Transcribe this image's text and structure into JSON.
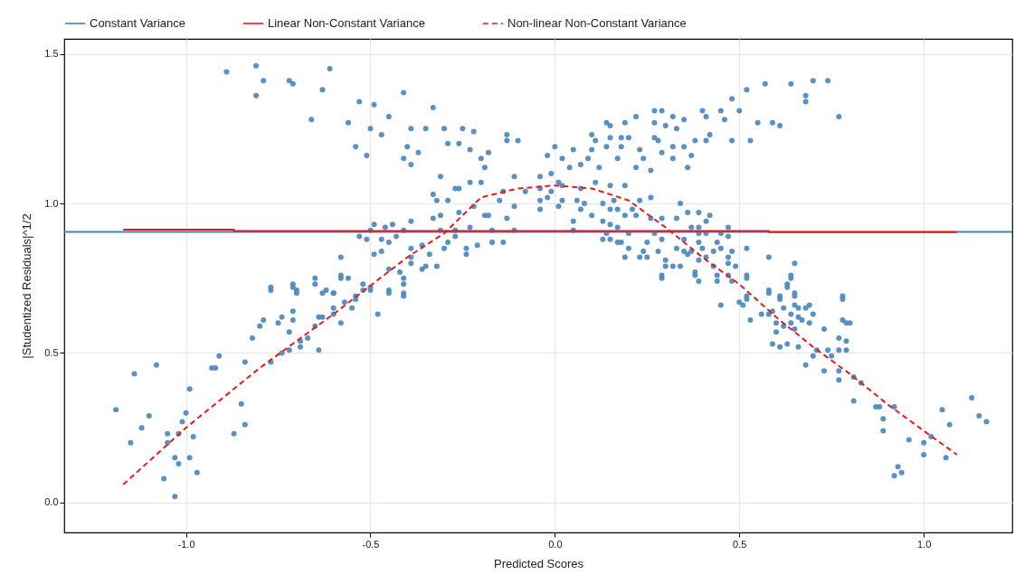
{
  "chart_data": {
    "type": "scatter",
    "xlabel": "Predicted Scores",
    "ylabel": "|Studentized Residuals|^1/2",
    "xlim": [
      -1.33,
      1.24
    ],
    "ylim": [
      -0.1,
      1.55
    ],
    "xticks": [
      {
        "value": -1,
        "label": "-1.0"
      },
      {
        "value": -0.5,
        "label": "-0.5"
      },
      {
        "value": 0,
        "label": "0.0"
      },
      {
        "value": 0.5,
        "label": "0.5"
      },
      {
        "value": 1,
        "label": "1.0"
      }
    ],
    "yticks": [
      {
        "value": 0,
        "label": "0.0"
      },
      {
        "value": 0.5,
        "label": "0.5"
      },
      {
        "value": 1,
        "label": "1.0"
      },
      {
        "value": 1.5,
        "label": "1.5"
      }
    ],
    "grid": true,
    "legend": "top",
    "series": [
      {
        "color": "#4f8bc0",
        "x": [
          -0.89,
          -0.81,
          -0.79,
          -0.81,
          -0.72,
          -0.71,
          -0.63,
          -0.61,
          -0.66,
          -0.56,
          -0.53,
          -0.49,
          -0.41,
          -0.33,
          -0.54,
          -0.51,
          -0.5,
          -0.45,
          -0.47,
          -0.41,
          -0.39,
          -0.4,
          -0.37,
          -0.39,
          -0.35,
          -0.3,
          -0.29,
          -0.26,
          -0.25,
          -0.22,
          -0.23,
          -0.2,
          -0.18,
          -0.19,
          -0.13,
          -0.13,
          -0.1,
          -0.14,
          -0.08,
          -0.11,
          -0.15,
          -0.11,
          -0.13,
          -0.31,
          -0.33,
          -0.32,
          -0.29,
          -0.27,
          -0.26,
          -0.23,
          -0.2,
          -0.22,
          -0.19,
          -0.18,
          -0.26,
          -0.33,
          -0.31,
          -0.49,
          -0.5,
          -0.53,
          -0.51,
          -0.44,
          -0.46,
          -0.47,
          -0.45,
          -0.47,
          -0.43,
          -0.41,
          -0.39,
          -0.39,
          -0.39,
          -0.36,
          -0.34,
          -0.31,
          -0.3,
          -0.29,
          -0.27,
          -0.27,
          -0.24,
          -0.24,
          -0.21,
          -0.17,
          -0.14,
          -0.17,
          -0.23,
          -0.11,
          -0.32,
          -0.35,
          -0.36,
          -0.39,
          -0.41,
          -0.42,
          -0.41,
          -0.45,
          -0.45,
          -0.49,
          -0.5,
          -0.52,
          -0.54,
          -0.56,
          -0.58,
          -0.58,
          -0.65,
          -0.71,
          -0.7,
          -0.77,
          -0.62,
          -0.6,
          -1.19,
          -1.14,
          -1.08,
          -1.1,
          -1.12,
          -1.15,
          -1.05,
          -1.05,
          -1.06,
          -1.03,
          -1.03,
          -1.02,
          -1.02,
          -1.01,
          -1.0,
          -0.99,
          -0.98,
          -0.99,
          -0.97,
          -0.93,
          -0.92,
          -0.91,
          -0.87,
          -0.84,
          -0.85,
          -0.84,
          -0.82,
          -0.8,
          -0.79,
          -0.77,
          -0.77,
          -0.75,
          -0.74,
          -0.74,
          -0.72,
          -0.72,
          -0.71,
          -0.71,
          -0.71,
          -0.7,
          -0.69,
          -0.69,
          -0.67,
          -0.65,
          -0.65,
          -0.64,
          -0.64,
          -0.63,
          -0.6,
          -0.6,
          -0.63,
          -0.6,
          -0.58,
          -0.58,
          -0.57,
          -0.55,
          -0.54,
          -0.52,
          -0.5,
          -0.48,
          -0.45,
          -0.41,
          -0.41,
          0.1,
          0.14,
          0.15,
          0.19,
          0.22,
          0.27,
          0.29,
          0.32,
          0.35,
          0.4,
          0.41,
          0.45,
          0.48,
          0.52,
          0.57,
          0.64,
          0.7,
          0.74,
          0.68,
          0.68,
          0.77,
          0.59,
          0.61,
          0.55,
          0.53,
          0.48,
          0.5,
          0.46,
          0.42,
          0.41,
          0.38,
          0.36,
          0.37,
          0.35,
          0.32,
          0.32,
          0.33,
          0.3,
          0.27,
          0.27,
          0.28,
          0.29,
          0.26,
          0.24,
          0.22,
          0.23,
          0.2,
          0.18,
          0.18,
          0.15,
          0.17,
          0.14,
          0.11,
          0.1,
          0.09,
          0.05,
          0.02,
          0.0,
          -0.02,
          0.04,
          0.07,
          0.12,
          -0.01,
          -0.04,
          0.01,
          -0.04,
          -0.01,
          0.02,
          0.07,
          0.11,
          0.15,
          0.19,
          -0.04,
          -0.02,
          0.02,
          0.06,
          0.08,
          0.13,
          0.16,
          -0.04,
          0.01,
          0.07,
          0.15,
          0.17,
          0.05,
          0.05,
          0.1,
          0.23,
          0.26,
          0.34,
          0.21,
          0.19,
          0.13,
          0.15,
          0.17,
          0.22,
          0.26,
          0.29,
          0.33,
          0.36,
          0.39,
          0.42,
          0.41,
          0.39,
          0.37,
          0.47,
          0.47,
          0.45,
          0.41,
          0.39,
          0.27,
          0.2,
          0.13,
          0.17,
          0.18,
          0.14,
          0.15,
          0.2,
          0.19,
          0.23,
          0.24,
          0.25,
          0.25,
          0.28,
          0.29,
          0.3,
          0.29,
          0.29,
          0.3,
          0.32,
          0.34,
          0.33,
          0.35,
          0.35,
          0.36,
          0.37,
          0.39,
          0.4,
          0.41,
          0.39,
          0.38,
          0.38,
          0.39,
          0.43,
          0.44,
          0.43,
          0.45,
          0.47,
          0.48,
          0.47,
          0.49,
          0.44,
          0.44,
          0.48,
          0.47,
          0.52,
          0.52,
          0.58,
          0.65,
          0.64,
          0.63,
          0.65,
          0.61,
          0.58,
          0.52,
          0.78,
          0.52,
          0.5,
          0.51,
          0.52,
          0.45,
          0.53,
          0.56,
          0.58,
          0.58,
          0.61,
          0.63,
          0.64,
          0.65,
          0.62,
          0.59,
          0.6,
          0.62,
          0.6,
          0.59,
          0.61,
          0.63,
          0.66,
          0.64,
          0.65,
          0.64,
          0.66,
          0.67,
          0.69,
          0.7,
          0.69,
          0.66,
          0.68,
          0.65,
          0.73,
          0.68,
          0.7,
          0.71,
          0.73,
          0.74,
          0.75,
          0.77,
          0.77,
          0.78,
          0.78,
          0.79,
          0.8,
          0.79,
          0.79,
          0.77,
          0.77,
          0.81,
          0.83,
          0.81,
          0.87,
          0.88,
          0.89,
          0.89,
          0.92,
          0.96,
          0.92,
          0.93,
          0.94,
          1.0,
          1.0,
          1.02,
          1.05,
          1.06,
          1.07,
          1.13,
          1.15,
          1.17
        ],
        "values": [
          1.44,
          1.46,
          1.41,
          1.36,
          1.41,
          1.4,
          1.38,
          1.45,
          1.28,
          1.27,
          1.34,
          1.33,
          1.37,
          1.32,
          1.19,
          1.16,
          1.25,
          1.29,
          1.23,
          1.15,
          1.13,
          1.19,
          1.17,
          1.25,
          1.25,
          1.25,
          1.2,
          1.2,
          1.25,
          1.24,
          1.18,
          1.15,
          1.17,
          1.12,
          1.23,
          1.21,
          1.21,
          1.04,
          1.04,
          1.09,
          1.01,
          0.99,
          0.95,
          1.09,
          1.03,
          1.01,
          1.01,
          1.05,
          1.05,
          1.07,
          1.07,
          0.99,
          0.96,
          0.96,
          0.97,
          0.95,
          0.96,
          0.93,
          0.91,
          0.89,
          0.88,
          0.93,
          0.92,
          0.88,
          0.87,
          0.84,
          0.89,
          0.91,
          0.94,
          0.85,
          0.82,
          0.86,
          0.83,
          0.91,
          0.85,
          0.87,
          0.91,
          0.89,
          0.85,
          0.83,
          0.86,
          0.87,
          0.87,
          0.91,
          0.92,
          0.91,
          0.79,
          0.79,
          0.78,
          0.8,
          0.75,
          0.77,
          0.7,
          0.71,
          0.78,
          0.83,
          0.72,
          0.73,
          0.69,
          0.75,
          0.76,
          0.82,
          0.75,
          0.73,
          0.71,
          0.72,
          0.71,
          0.7,
          0.31,
          0.43,
          0.46,
          0.29,
          0.25,
          0.2,
          0.23,
          0.2,
          0.08,
          0.02,
          0.15,
          0.13,
          0.23,
          0.27,
          0.3,
          0.38,
          0.22,
          0.15,
          0.1,
          0.45,
          0.45,
          0.49,
          0.23,
          0.26,
          0.33,
          0.47,
          0.55,
          0.59,
          0.61,
          0.47,
          0.71,
          0.6,
          0.62,
          0.5,
          0.51,
          0.57,
          0.64,
          0.72,
          0.61,
          0.7,
          0.54,
          0.52,
          0.55,
          0.59,
          0.73,
          0.51,
          0.62,
          0.62,
          0.63,
          0.65,
          0.7,
          0.7,
          0.75,
          0.6,
          0.67,
          0.65,
          0.68,
          0.71,
          0.71,
          0.63,
          0.7,
          0.69,
          0.73,
          1.23,
          1.27,
          1.26,
          1.27,
          1.29,
          1.31,
          1.31,
          1.29,
          1.28,
          1.31,
          1.29,
          1.31,
          1.35,
          1.38,
          1.4,
          1.4,
          1.41,
          1.41,
          1.36,
          1.34,
          1.29,
          1.27,
          1.26,
          1.27,
          1.21,
          1.21,
          1.31,
          1.28,
          1.23,
          1.21,
          1.21,
          1.12,
          1.16,
          1.19,
          1.19,
          1.15,
          1.25,
          1.26,
          1.27,
          1.22,
          1.21,
          1.17,
          1.11,
          1.15,
          1.12,
          1.18,
          1.22,
          1.19,
          1.22,
          1.22,
          1.15,
          1.19,
          1.21,
          1.18,
          1.15,
          1.18,
          1.15,
          1.19,
          1.16,
          1.12,
          1.13,
          1.12,
          1.1,
          1.09,
          1.07,
          1.05,
          1.04,
          1.06,
          1.05,
          1.07,
          1.06,
          1.06,
          1.01,
          1.02,
          1.01,
          1.01,
          1.0,
          1.0,
          1.01,
          0.98,
          0.99,
          0.98,
          0.98,
          0.98,
          0.94,
          0.91,
          0.96,
          1.01,
          1.02,
          1.0,
          0.98,
          0.96,
          0.94,
          0.93,
          0.92,
          0.96,
          0.95,
          0.95,
          0.95,
          0.97,
          0.97,
          0.96,
          0.94,
          0.92,
          0.92,
          0.92,
          0.89,
          0.9,
          0.9,
          0.9,
          0.9,
          0.9,
          0.88,
          0.87,
          0.87,
          0.9,
          0.88,
          0.85,
          0.82,
          0.82,
          0.84,
          0.87,
          0.82,
          0.84,
          0.88,
          0.81,
          0.76,
          0.75,
          0.79,
          0.79,
          0.79,
          0.85,
          0.84,
          0.88,
          0.83,
          0.84,
          0.87,
          0.85,
          0.82,
          0.81,
          0.77,
          0.76,
          0.74,
          0.79,
          0.87,
          0.84,
          0.85,
          0.82,
          0.84,
          0.8,
          0.79,
          0.76,
          0.74,
          0.74,
          0.76,
          0.85,
          0.76,
          0.82,
          0.8,
          0.76,
          0.73,
          0.7,
          0.69,
          0.71,
          0.69,
          0.69,
          0.75,
          0.67,
          0.66,
          0.68,
          0.66,
          0.61,
          0.63,
          0.63,
          0.7,
          0.68,
          0.72,
          0.75,
          0.69,
          0.65,
          0.64,
          0.6,
          0.59,
          0.57,
          0.53,
          0.52,
          0.53,
          0.52,
          0.6,
          0.58,
          0.63,
          0.62,
          0.61,
          0.6,
          0.63,
          0.66,
          0.65,
          0.65,
          0.66,
          0.58,
          0.46,
          0.49,
          0.51,
          0.44,
          0.51,
          0.49,
          0.51,
          0.55,
          0.61,
          0.68,
          0.6,
          0.6,
          0.54,
          0.51,
          0.44,
          0.41,
          0.42,
          0.4,
          0.34,
          0.32,
          0.32,
          0.28,
          0.24,
          0.32,
          0.21,
          0.09,
          0.12,
          0.1,
          0.2,
          0.16,
          0.22,
          0.31,
          0.15,
          0.26,
          0.35,
          0.29,
          0.27
        ]
      },
      {
        "type": "line",
        "name": "Constant Variance",
        "color": "#4682b4",
        "line_style": "solid",
        "x": [
          -1.33,
          1.24
        ],
        "values": [
          0.905,
          0.905
        ]
      },
      {
        "type": "line",
        "name": "Linear Non-Constant Variance",
        "color": "#e8191c",
        "line_style": "solid",
        "x": [
          -1.17,
          -0.87,
          -0.87,
          0.58,
          0.58,
          1.09
        ],
        "values": [
          0.912,
          0.912,
          0.908,
          0.908,
          0.904,
          0.904
        ]
      },
      {
        "type": "line",
        "name": "Non-linear Non-Constant Variance",
        "color": "#e8191c",
        "line_style": "dashed",
        "x": [
          -1.17,
          -1.0,
          -0.8,
          -0.6,
          -0.4,
          -0.3,
          -0.2,
          -0.1,
          0,
          0.1,
          0.2,
          0.3,
          0.4,
          0.5,
          0.6,
          0.7,
          0.8,
          0.9,
          1.0,
          1.09
        ],
        "values": [
          0.06,
          0.25,
          0.45,
          0.63,
          0.82,
          0.9,
          1.02,
          1.05,
          1.06,
          1.05,
          1.01,
          0.92,
          0.82,
          0.73,
          0.62,
          0.52,
          0.43,
          0.33,
          0.24,
          0.16
        ]
      }
    ]
  }
}
